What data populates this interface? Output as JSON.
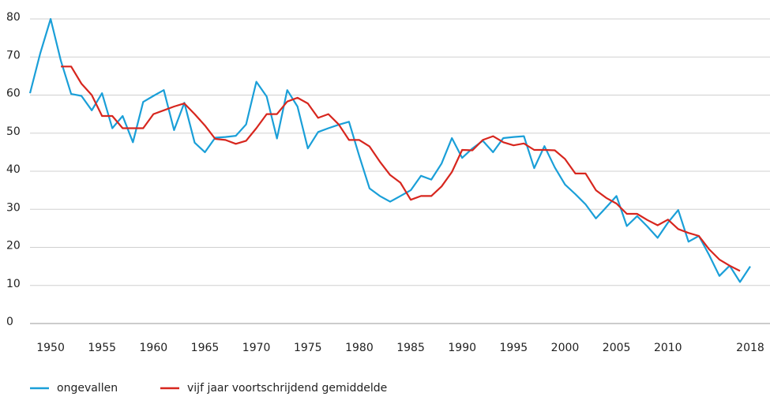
{
  "chart_data": {
    "type": "line",
    "x": [
      1948,
      1949,
      1950,
      1951,
      1952,
      1953,
      1954,
      1955,
      1956,
      1957,
      1958,
      1959,
      1960,
      1961,
      1962,
      1963,
      1964,
      1965,
      1966,
      1967,
      1968,
      1969,
      1970,
      1971,
      1972,
      1973,
      1974,
      1975,
      1976,
      1977,
      1978,
      1979,
      1980,
      1981,
      1982,
      1983,
      1984,
      1985,
      1986,
      1987,
      1988,
      1989,
      1990,
      1991,
      1992,
      1993,
      1994,
      1995,
      1996,
      1997,
      1998,
      1999,
      2000,
      2001,
      2002,
      2003,
      2004,
      2005,
      2006,
      2007,
      2008,
      2009,
      2010,
      2011,
      2012,
      2013,
      2014,
      2015,
      2016,
      2017,
      2018
    ],
    "series": [
      {
        "name": "ongevallen",
        "color": "#1a9fd8",
        "values": [
          60.5,
          71,
          80,
          69,
          60.3,
          59.8,
          56,
          60.5,
          51.3,
          54.5,
          47.6,
          58.2,
          59.8,
          61.3,
          50.8,
          58,
          47.5,
          45,
          48.8,
          49,
          49.3,
          52.3,
          63.5,
          59.6,
          48.6,
          61.3,
          57,
          46,
          50.3,
          51.3,
          52.2,
          53,
          44,
          35.5,
          33.5,
          32,
          33.5,
          35,
          38.8,
          37.8,
          42,
          48.7,
          43.5,
          46,
          48,
          45,
          48.7,
          49,
          49.2,
          40.8,
          46.6,
          41,
          36.5,
          34,
          31.3,
          27.6,
          30.5,
          33.5,
          25.6,
          28.2,
          25.5,
          22.5,
          26.5,
          29.8,
          21.5,
          23,
          18,
          12.5,
          15.2,
          10.9,
          15
        ]
      },
      {
        "name": "vijf jaar voortschrijdend gemiddelde",
        "color": "#d7261e",
        "values": [
          null,
          null,
          null,
          67.5,
          67.5,
          63,
          60,
          54.5,
          54.5,
          51.3,
          51.3,
          51.3,
          55,
          56,
          57,
          57.8,
          55,
          52,
          48.5,
          48.2,
          47.2,
          48,
          51.3,
          55,
          55,
          58.3,
          59.3,
          57.8,
          54,
          55,
          52.3,
          48.2,
          48.2,
          46.5,
          42.5,
          39,
          37,
          32.5,
          33.5,
          33.5,
          36,
          39.8,
          45.6,
          45.5,
          48.2,
          49.2,
          47.6,
          46.8,
          47.3,
          45.6,
          45.6,
          45.5,
          43.2,
          39.4,
          39.4,
          35,
          33,
          31.5,
          28.8,
          28.8,
          27.2,
          25.8,
          27.3,
          24.8,
          23.8,
          23,
          19.5,
          16.8,
          15.2,
          13.8,
          null
        ]
      }
    ],
    "xlim": [
      1948,
      2018
    ],
    "xticks": [
      1950,
      1955,
      1960,
      1965,
      1970,
      1975,
      1980,
      1985,
      1990,
      1995,
      2000,
      2005,
      2010,
      2018
    ],
    "ylim": [
      0,
      80
    ],
    "yticks": [
      0,
      10,
      20,
      30,
      40,
      50,
      60,
      70,
      80
    ],
    "grid": true
  }
}
